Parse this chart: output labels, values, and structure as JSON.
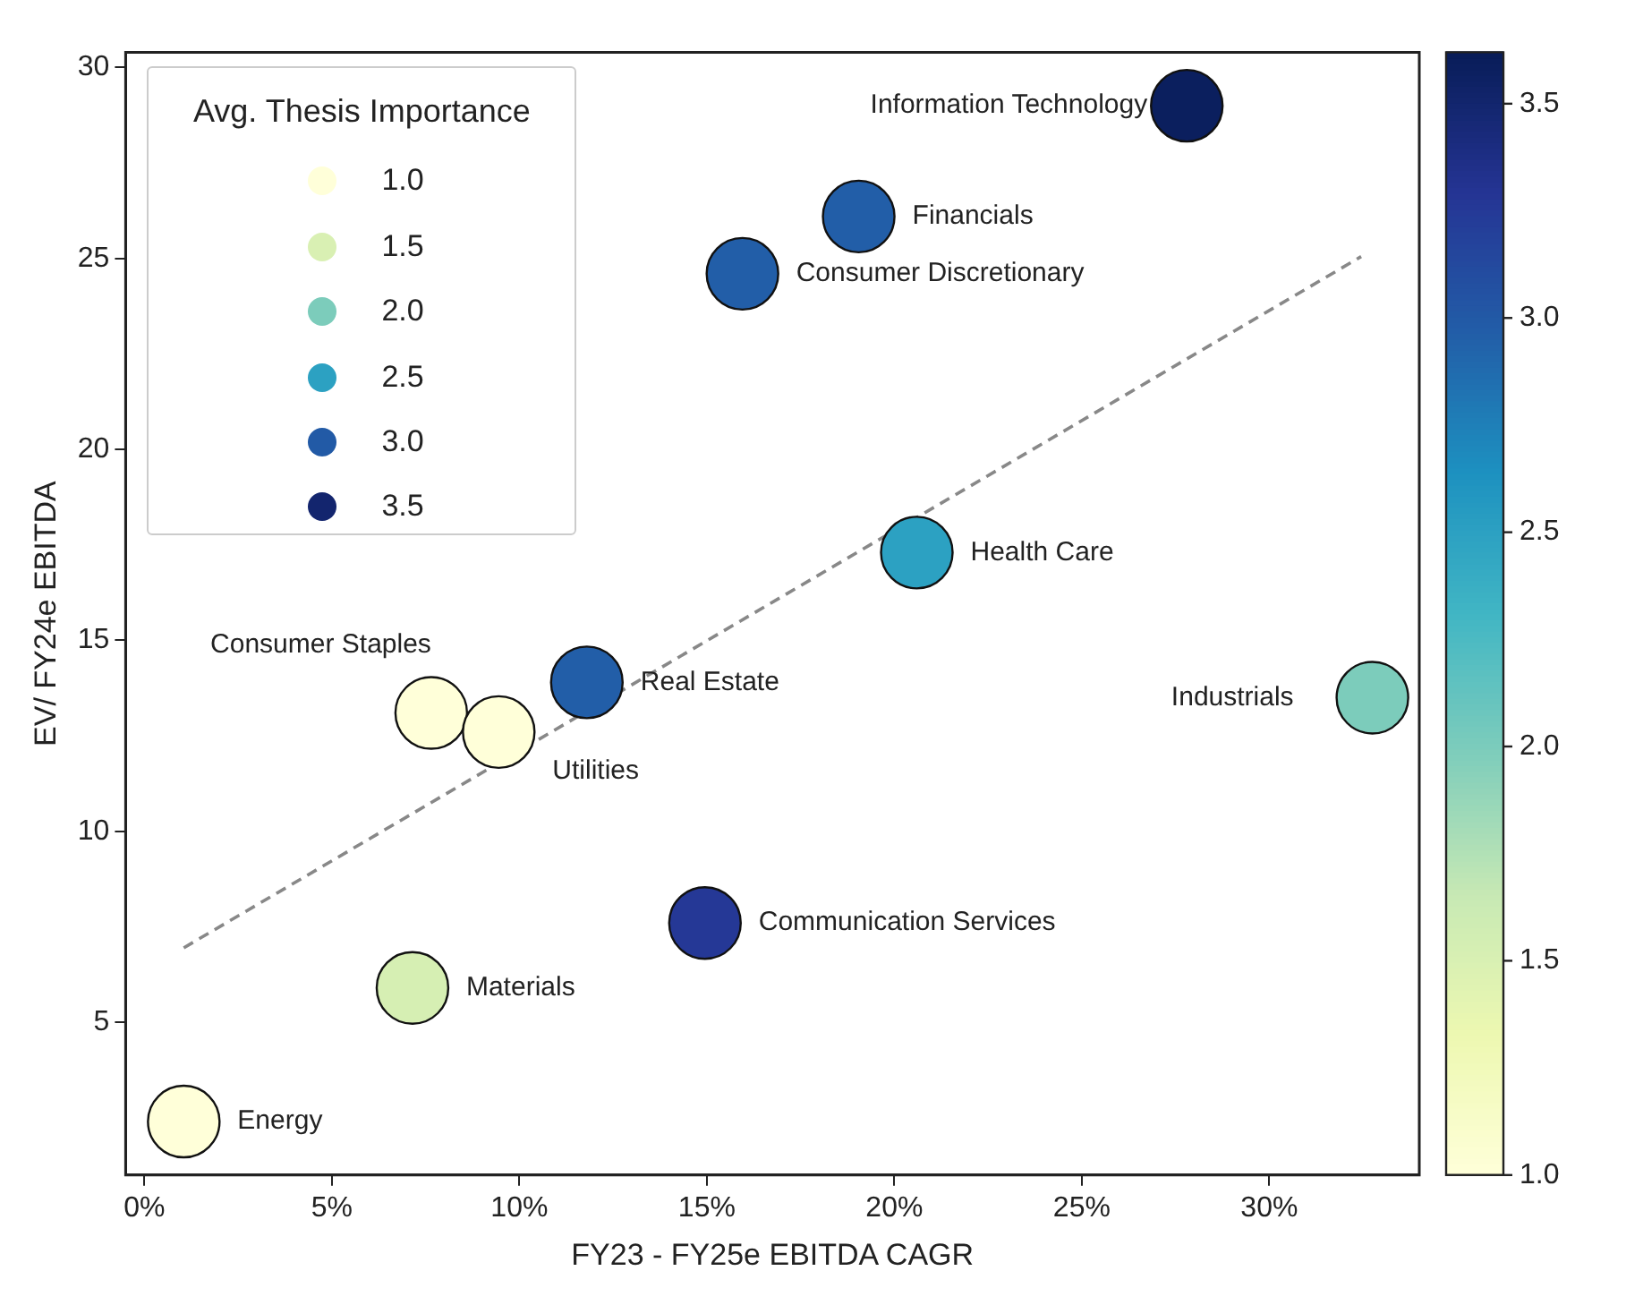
{
  "chart_data": {
    "type": "scatter",
    "xlabel": "FY23 - FY25e EBITDA CAGR",
    "ylabel": "EV/ FY24e EBITDA",
    "legend_title": "Avg. Thesis Importance",
    "xlim": [
      -0.5,
      34
    ],
    "ylim": [
      1,
      30.4
    ],
    "xticks": [
      {
        "value": 0,
        "label": "0%"
      },
      {
        "value": 5,
        "label": "5%"
      },
      {
        "value": 10,
        "label": "10%"
      },
      {
        "value": 15,
        "label": "15%"
      },
      {
        "value": 20,
        "label": "20%"
      },
      {
        "value": 25,
        "label": "25%"
      },
      {
        "value": 30,
        "label": "30%"
      }
    ],
    "yticks": [
      5,
      10,
      15,
      20,
      25,
      30
    ],
    "clim": [
      1,
      3.62
    ],
    "cticks": [
      {
        "value": 1,
        "label": "1.0"
      },
      {
        "value": 1.5,
        "label": "1.5"
      },
      {
        "value": 2,
        "label": "2.0"
      },
      {
        "value": 2.5,
        "label": "2.5"
      },
      {
        "value": 3,
        "label": "3.0"
      },
      {
        "value": 3.5,
        "label": "3.5"
      }
    ],
    "series": [
      {
        "marker": "circle",
        "colors": [
          "#ffffd9",
          "#d6efb3",
          "#ffffd9",
          "#ffffd9",
          "#225ea8",
          "#253896",
          "#225ea8",
          "#225ea8",
          "#2ca1c2",
          "#0b1f5e",
          "#7cccbb"
        ],
        "x": [
          1.05,
          7.15,
          7.65,
          9.45,
          11.8,
          14.95,
          15.95,
          19.05,
          20.6,
          27.8,
          32.75
        ],
        "values": [
          2.4,
          5.9,
          13.1,
          12.6,
          13.9,
          7.6,
          24.6,
          26.1,
          17.3,
          29.0,
          13.5
        ]
      },
      {
        "type": "line",
        "marker": "none",
        "line_style": "dashed",
        "color": "#888888",
        "x": [
          1.05,
          32.45
        ],
        "values": [
          6.95,
          25.05
        ]
      }
    ],
    "annotations": [
      {
        "text": "Energy",
        "x": 1.05,
        "y": 2.4
      },
      {
        "text": "Materials",
        "x": 7.15,
        "y": 5.9
      },
      {
        "text": "Consumer Staples",
        "x": 7.65,
        "y": 13.1
      },
      {
        "text": "Utilities",
        "x": 9.45,
        "y": 12.6
      },
      {
        "text": "Real Estate",
        "x": 11.8,
        "y": 13.9
      },
      {
        "text": "Communication Services",
        "x": 14.95,
        "y": 7.6
      },
      {
        "text": "Consumer Discretionary",
        "x": 15.95,
        "y": 24.6
      },
      {
        "text": "Financials",
        "x": 19.05,
        "y": 26.1
      },
      {
        "text": "Health Care",
        "x": 20.6,
        "y": 17.3
      },
      {
        "text": "Information Technology",
        "x": 27.8,
        "y": 29.0
      },
      {
        "text": "Industrials",
        "x": 32.75,
        "y": 13.5
      }
    ]
  }
}
